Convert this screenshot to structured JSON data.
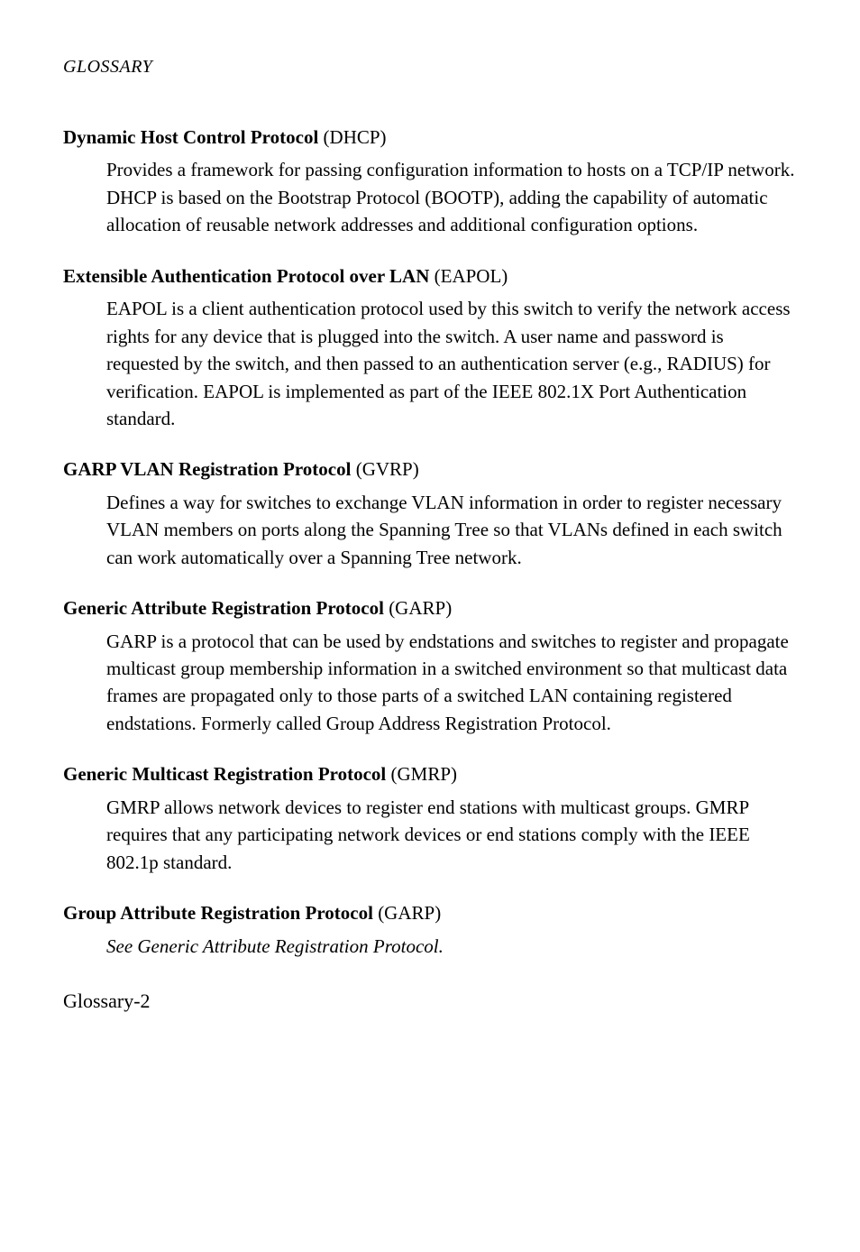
{
  "running_head": "GLOSSARY",
  "entries": [
    {
      "term": "Dynamic Host Control Protocol",
      "abbr": " (DHCP)",
      "definition": "Provides a framework for passing configuration information to hosts on a TCP/IP network. DHCP is based on the Bootstrap Protocol (BOOTP), adding the capability of automatic allocation of reusable network addresses and additional configuration options.",
      "italic": false
    },
    {
      "term": "Extensible Authentication Protocol over LAN",
      "abbr": " (EAPOL)",
      "definition": "EAPOL is a client authentication protocol used by this switch to verify the network access rights for any device that is plugged into the switch. A user name and password is requested by the switch, and then passed to an authentication server (e.g., RADIUS) for verification. EAPOL is implemented as part of the IEEE 802.1X Port Authentication standard.",
      "italic": false
    },
    {
      "term": "GARP VLAN Registration Protocol",
      "abbr": " (GVRP)",
      "definition": "Defines a way for switches to exchange VLAN information in order to register necessary VLAN members on ports along the Spanning Tree so that VLANs defined in each switch can work automatically over a Spanning Tree network.",
      "italic": false
    },
    {
      "term": "Generic Attribute Registration Protocol",
      "abbr": " (GARP)",
      "definition": "GARP is a protocol that can be used by endstations and switches to register and propagate multicast group membership information in a switched environment so that multicast data frames are propagated only to those parts of a switched LAN containing registered endstations. Formerly called Group Address Registration Protocol.",
      "italic": false
    },
    {
      "term": "Generic Multicast Registration Protocol",
      "abbr": " (GMRP)",
      "definition": "GMRP allows network devices to register end stations with multicast groups. GMRP requires that any participating network devices or end stations comply with the IEEE 802.1p standard.",
      "italic": false
    },
    {
      "term": "Group Attribute Registration Protocol",
      "abbr": " (GARP)",
      "definition": "See Generic Attribute Registration Protocol.",
      "italic": true
    }
  ],
  "page_number": "Glossary-2"
}
